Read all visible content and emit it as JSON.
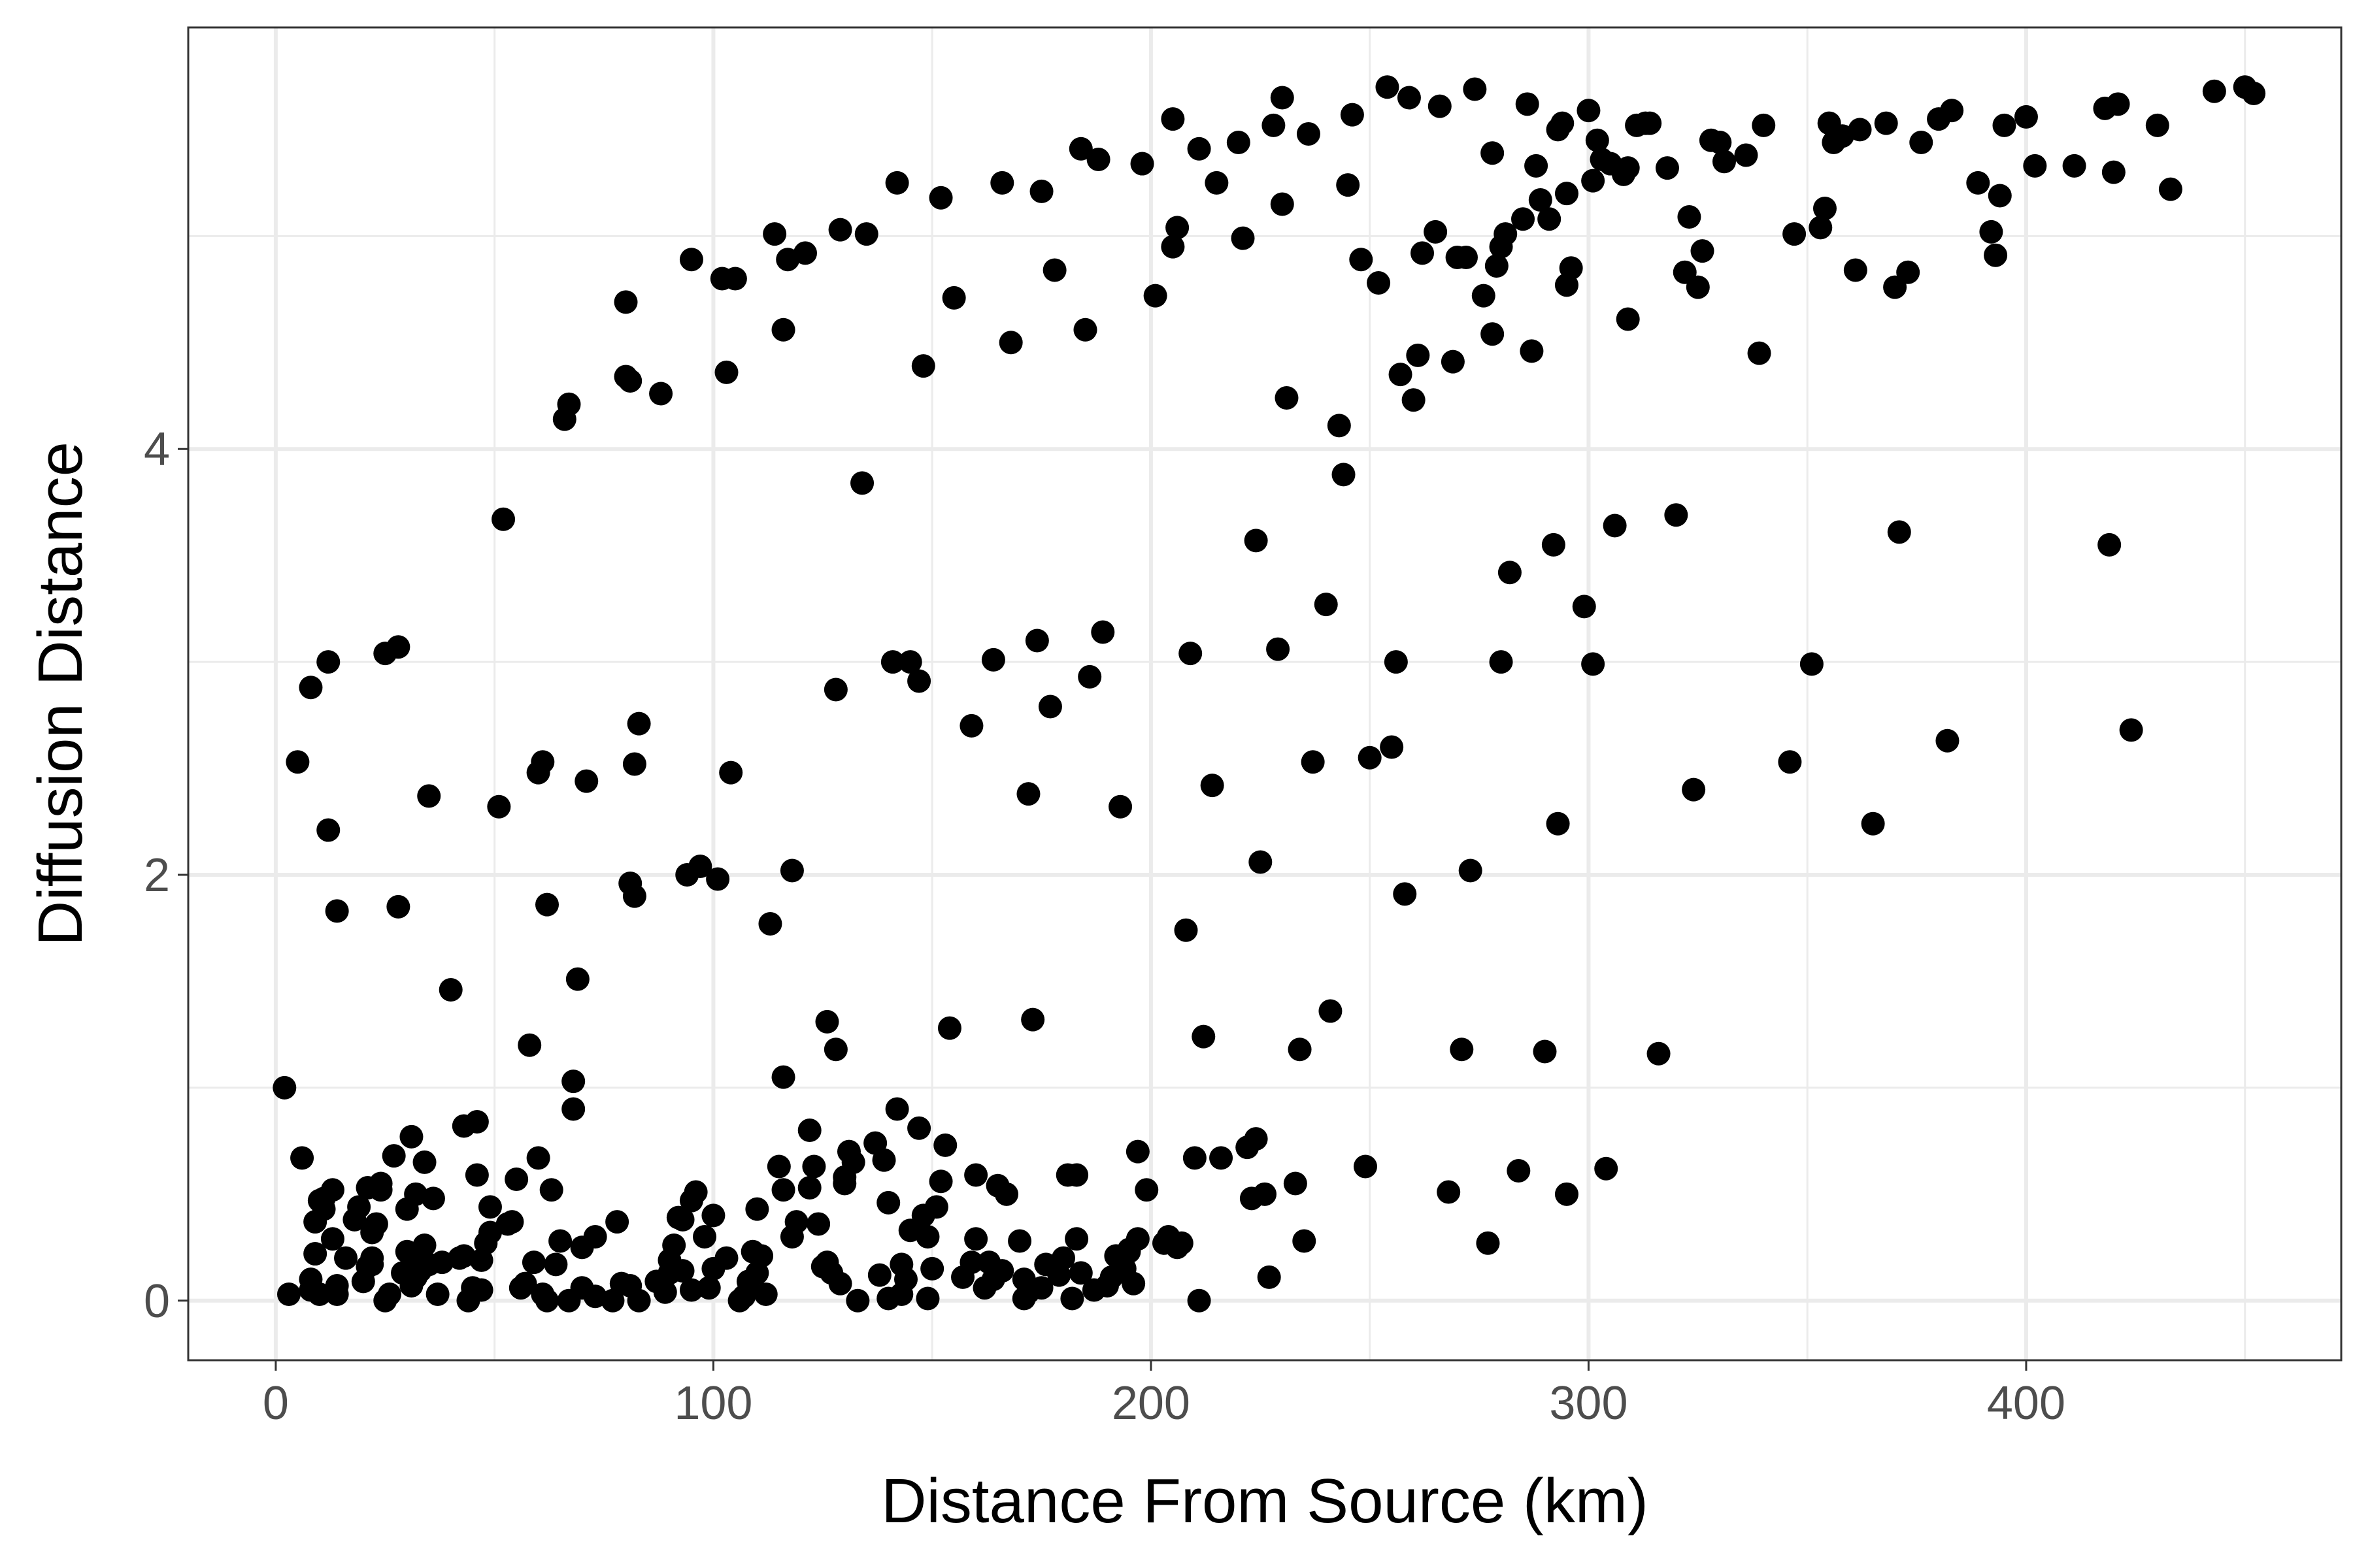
{
  "chart_data": {
    "type": "scatter",
    "title": "",
    "xlabel": "Distance From Source (km)",
    "ylabel": "Diffusion Distance",
    "xlim": [
      -20,
      472
    ],
    "ylim": [
      -0.28,
      5.98
    ],
    "x_ticks": [
      0,
      100,
      200,
      300,
      400
    ],
    "y_ticks": [
      0,
      2,
      4
    ],
    "x_ticks_minor": [
      50,
      150,
      250,
      350,
      450
    ],
    "y_ticks_minor": [
      1,
      3,
      5
    ],
    "grid": true,
    "legend": "none",
    "colors": {
      "point": "#000000",
      "grid": "#ebebeb",
      "panel_border": "#333333",
      "tick_label": "#4d4d4d"
    },
    "series": [
      {
        "name": "points",
        "x": [
          2,
          3,
          5,
          6,
          8,
          8,
          8,
          9,
          9,
          10,
          10,
          11,
          11,
          12,
          12,
          13,
          13,
          14,
          14,
          14,
          16,
          18,
          19,
          20,
          21,
          21,
          21,
          22,
          22,
          22,
          23,
          24,
          24,
          25,
          25,
          26,
          27,
          28,
          28,
          29,
          30,
          30,
          31,
          31,
          32,
          32,
          33,
          33,
          34,
          34,
          35,
          35,
          36,
          37,
          38,
          40,
          42,
          43,
          43,
          44,
          45,
          46,
          46,
          47,
          47,
          48,
          49,
          49,
          51,
          52,
          53,
          54,
          55,
          56,
          57,
          58,
          59,
          60,
          60,
          61,
          61,
          62,
          62,
          63,
          64,
          65,
          66,
          67,
          67,
          68,
          68,
          69,
          70,
          70,
          71,
          73,
          73,
          77,
          78,
          79,
          80,
          80,
          81,
          81,
          81,
          82,
          82,
          83,
          83,
          87,
          88,
          89,
          90,
          90,
          91,
          92,
          93,
          93,
          94,
          95,
          95,
          95,
          96,
          97,
          98,
          99,
          100,
          100,
          101,
          102,
          103,
          103,
          104,
          105,
          106,
          107,
          108,
          109,
          110,
          110,
          111,
          112,
          113,
          114,
          115,
          116,
          116,
          116,
          117,
          118,
          118,
          119,
          121,
          122,
          122,
          123,
          124,
          125,
          126,
          126,
          127,
          128,
          128,
          129,
          129,
          130,
          130,
          131,
          132,
          133,
          134,
          135,
          137,
          138,
          139,
          140,
          140,
          141,
          142,
          142,
          143,
          143,
          144,
          145,
          145,
          147,
          147,
          148,
          148,
          149,
          149,
          150,
          151,
          152,
          152,
          153,
          154,
          155,
          157,
          159,
          159,
          160,
          160,
          162,
          163,
          164,
          164,
          165,
          166,
          166,
          167,
          168,
          170,
          171,
          171,
          172,
          172,
          173,
          174,
          175,
          175,
          176,
          177,
          178,
          179,
          180,
          181,
          182,
          183,
          183,
          184,
          184,
          185,
          186,
          187,
          188,
          189,
          190,
          191,
          192,
          193,
          194,
          195,
          195,
          196,
          197,
          197,
          198,
          199,
          201,
          203,
          204,
          205,
          205,
          206,
          206,
          207,
          208,
          209,
          210,
          211,
          211,
          212,
          214,
          215,
          216,
          220,
          221,
          222,
          223,
          224,
          224,
          225,
          226,
          227,
          228,
          229,
          230,
          230,
          231,
          233,
          234,
          235,
          236,
          237,
          240,
          241,
          243,
          244,
          245,
          246,
          248,
          249,
          250,
          252,
          254,
          255,
          256,
          257,
          258,
          259,
          260,
          261,
          262,
          265,
          266,
          268,
          269,
          270,
          271,
          272,
          273,
          274,
          276,
          277,
          278,
          278,
          279,
          280,
          280,
          281,
          282,
          284,
          285,
          286,
          287,
          288,
          289,
          290,
          291,
          292,
          293,
          293,
          294,
          295,
          295,
          295,
          296,
          299,
          300,
          301,
          301,
          302,
          303,
          304,
          305,
          306,
          308,
          309,
          309,
          311,
          313,
          314,
          316,
          318,
          320,
          322,
          323,
          324,
          325,
          326,
          328,
          330,
          331,
          336,
          339,
          340,
          346,
          347,
          351,
          353,
          354,
          355,
          356,
          358,
          361,
          362,
          365,
          368,
          370,
          371,
          373,
          376,
          380,
          382,
          383,
          389,
          392,
          393,
          394,
          395,
          400,
          402,
          411,
          418,
          419,
          420,
          421,
          424,
          430,
          433,
          443,
          450,
          452
        ]
      }
    ]
  }
}
